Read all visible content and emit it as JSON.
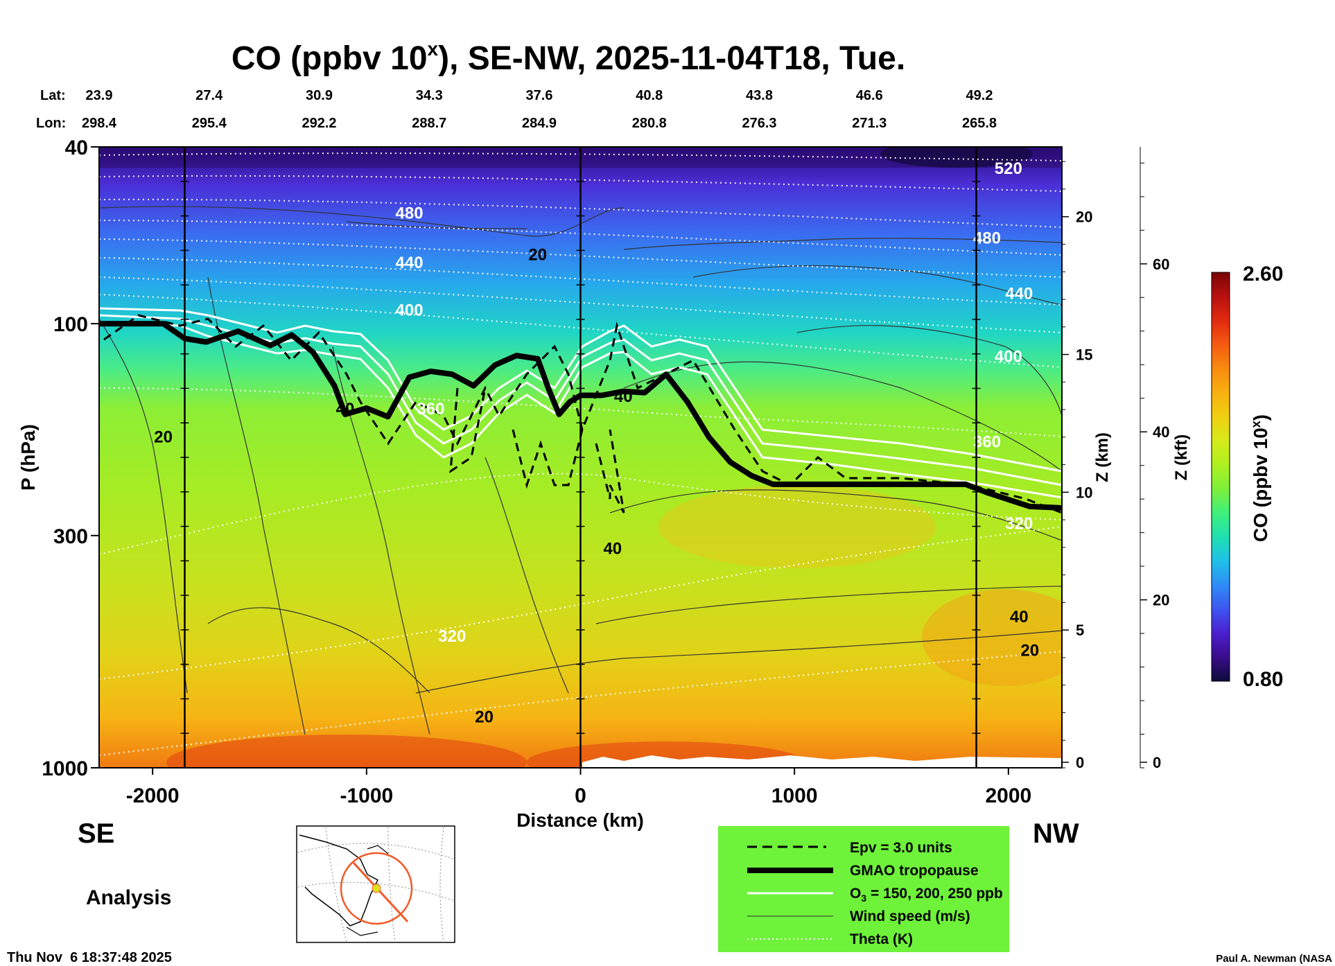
{
  "title": {
    "main": "CO (ppbv 10",
    "sup": "x",
    "rest": "), SE-NW, 2025-11-04T18, Tue."
  },
  "top_axes": {
    "lat_label": "Lat:",
    "lon_label": "Lon:",
    "lat_values": [
      "23.9",
      "27.4",
      "30.9",
      "34.3",
      "37.6",
      "40.8",
      "43.8",
      "46.6",
      "49.2"
    ],
    "lon_values": [
      "298.4",
      "295.4",
      "292.2",
      "288.7",
      "284.9",
      "280.8",
      "276.3",
      "271.3",
      "265.8"
    ]
  },
  "left_labels": {
    "se": "SE",
    "nw": "NW",
    "analysis": "Analysis"
  },
  "footer": {
    "timestamp": "Thu Nov  6 18:37:48 2025",
    "credit": "Paul A. Newman (NASA"
  },
  "legend": {
    "bg_color": "#6ef23a",
    "items": [
      {
        "style": "dashed",
        "label": "Epv = 3.0 units"
      },
      {
        "style": "thick",
        "label": "GMAO tropopause"
      },
      {
        "style": "white",
        "label_pre": "O",
        "label_sub": "3",
        "label_post": " = 150, 200, 250 ppb"
      },
      {
        "style": "thin",
        "label": "Wind speed (m/s)"
      },
      {
        "style": "dotted",
        "label": "Theta (K)"
      }
    ]
  },
  "colorbar": {
    "label": "CO (ppbv 10",
    "label_sup": "x",
    "label_end": ")",
    "max_label": "2.60",
    "min_label": "0.80",
    "colors": [
      "#0b0b3a",
      "#3a0d8a",
      "#4b1fd0",
      "#3d55f0",
      "#2e8cf5",
      "#1fc0e8",
      "#1fe0b0",
      "#3ef07a",
      "#7ef03a",
      "#aef020",
      "#d6ea1a",
      "#f0d010",
      "#f8b010",
      "#f88a10",
      "#f55a10",
      "#e22a10",
      "#b81010",
      "#7a0606"
    ]
  },
  "chart_data": {
    "type": "heatmap",
    "title": "CO (ppbv 10^x), SE-NW, 2025-11-04T18, Tue.",
    "xlabel": "Distance (km)",
    "ylabel": "P (hPa)",
    "y2label": "Z (km)",
    "y3label": "Z (kft)",
    "xlim": [
      -2250,
      2250
    ],
    "ylim": [
      1000,
      40
    ],
    "y_scale": "log",
    "x_ticks": [
      "-2000",
      "-1000",
      "0",
      "1000",
      "2000"
    ],
    "x_tick_values": [
      -2000,
      -1000,
      0,
      1000,
      2000
    ],
    "y_ticks": [
      "40",
      "100",
      "300",
      "1000"
    ],
    "y_tick_values": [
      40,
      100,
      300,
      1000
    ],
    "z_km_ticks": [
      "0",
      "5",
      "10",
      "15",
      "20"
    ],
    "z_km_values": [
      0,
      5,
      10,
      15,
      20
    ],
    "z_kft_ticks": [
      "0",
      "20",
      "40",
      "60"
    ],
    "z_kft_values": [
      0,
      20,
      40,
      60
    ],
    "vertical_markers_km": [
      -1850,
      0,
      1850
    ],
    "tropopause": {
      "x": [
        -2250,
        -2000,
        -1950,
        -1850,
        -1750,
        -1600,
        -1450,
        -1350,
        -1250,
        -1150,
        -1100,
        -1000,
        -900,
        -800,
        -700,
        -600,
        -500,
        -400,
        -300,
        -200,
        -150,
        -100,
        -50,
        0,
        100,
        200,
        300,
        400,
        500,
        600,
        700,
        800,
        900,
        1000,
        1200,
        1400,
        1600,
        1800,
        1900,
        2100,
        2250
      ],
      "p": [
        100,
        100,
        100,
        108,
        110,
        104,
        112,
        106,
        116,
        138,
        160,
        155,
        162,
        132,
        128,
        130,
        138,
        124,
        118,
        120,
        140,
        160,
        150,
        145,
        145,
        142,
        143,
        130,
        150,
        180,
        205,
        220,
        230,
        230,
        230,
        230,
        230,
        230,
        240,
        258,
        260
      ]
    },
    "theta_labels": [
      {
        "label": "520",
        "x": 2000,
        "p": 46
      },
      {
        "label": "480",
        "x": -800,
        "p": 58
      },
      {
        "label": "480",
        "x": 1900,
        "p": 66
      },
      {
        "label": "440",
        "x": -800,
        "p": 75
      },
      {
        "label": "440",
        "x": 2050,
        "p": 88
      },
      {
        "label": "400",
        "x": -800,
        "p": 96
      },
      {
        "label": "400",
        "x": 2000,
        "p": 122
      },
      {
        "label": "360",
        "x": -700,
        "p": 160
      },
      {
        "label": "360",
        "x": 1900,
        "p": 190
      },
      {
        "label": "320",
        "x": 2050,
        "p": 290
      },
      {
        "label": "320",
        "x": -600,
        "p": 520
      }
    ],
    "wind_labels": [
      {
        "label": "20",
        "x": -1950,
        "p": 185
      },
      {
        "label": "20",
        "x": -200,
        "p": 72
      },
      {
        "label": "40",
        "x": -1100,
        "p": 160
      },
      {
        "label": "40",
        "x": 200,
        "p": 150
      },
      {
        "label": "40",
        "x": 150,
        "p": 330
      },
      {
        "label": "40",
        "x": 2050,
        "p": 470
      },
      {
        "label": "20",
        "x": -450,
        "p": 790
      },
      {
        "label": "20",
        "x": 2100,
        "p": 560
      }
    ]
  }
}
